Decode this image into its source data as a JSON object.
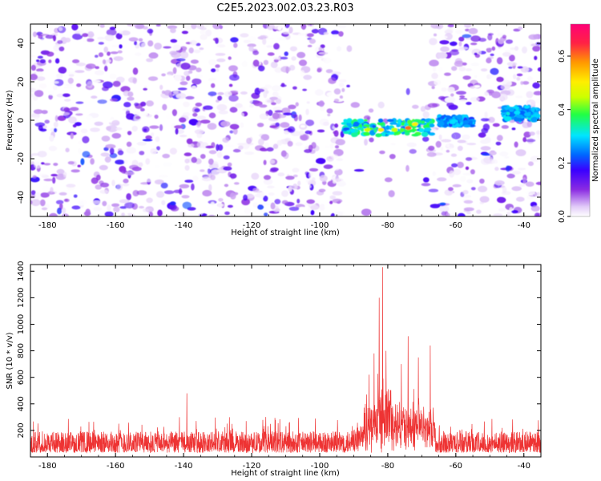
{
  "figure": {
    "title": "C2E5.2023.002.03.23.R03"
  },
  "colors": {
    "snr_line": "#ee3333",
    "axis": "#000000",
    "background": "#ffffff",
    "colormap": [
      "#ffffff",
      "#d7b8f5",
      "#8a2be2",
      "#3a00ff",
      "#0066ff",
      "#00e5ff",
      "#22ff44",
      "#ccff00",
      "#ffee00",
      "#ff9900",
      "#ff2244",
      "#ff0077"
    ]
  },
  "chart_data": [
    {
      "type": "heatmap",
      "title": "",
      "xlabel": "Height of straight line (km)",
      "ylabel": "Frequency (Hz)",
      "xlim": [
        -185,
        -35
      ],
      "ylim": [
        -50,
        50
      ],
      "x_ticks": [
        -180,
        -160,
        -140,
        -120,
        -100,
        -80,
        -60,
        -40
      ],
      "y_ticks": [
        -40,
        -20,
        0,
        20,
        40
      ],
      "grid": false,
      "colorbar": {
        "label": "Normalized spectral amplitude",
        "range": [
          0,
          0.72
        ],
        "ticks": [
          0.0,
          0.2,
          0.4,
          0.6
        ]
      },
      "regions": [
        {
          "x": [
            -185,
            -93
          ],
          "kind": "noise"
        },
        {
          "x": [
            -93,
            -67
          ],
          "kind": "signal-band",
          "band_y": [
            -8,
            0
          ]
        },
        {
          "x": [
            -67,
            -35
          ],
          "kind": "noise",
          "band_y": [
            -3,
            5
          ]
        }
      ],
      "hotspots": [
        {
          "x": -86,
          "y": -5,
          "amp": 0.45
        },
        {
          "x": -82,
          "y": -5,
          "amp": 0.5
        },
        {
          "x": -78,
          "y": -5,
          "amp": 0.45
        },
        {
          "x": -74,
          "y": -4,
          "amp": 0.6
        },
        {
          "x": -72,
          "y": -2,
          "amp": 0.5
        },
        {
          "x": -61,
          "y": -1,
          "amp": 0.3
        },
        {
          "x": -57,
          "y": -1,
          "amp": 0.25
        },
        {
          "x": -42,
          "y": 4,
          "amp": 0.3
        },
        {
          "x": -39,
          "y": 3,
          "amp": 0.28
        }
      ]
    },
    {
      "type": "line",
      "title": "",
      "xlabel": "Height of straight line (km)",
      "ylabel": "SNR (10 * v/v)",
      "xlim": [
        -185,
        -35
      ],
      "ylim": [
        0,
        1450
      ],
      "x_ticks": [
        -180,
        -160,
        -140,
        -120,
        -100,
        -80,
        -60,
        -40
      ],
      "y_ticks": [
        200,
        400,
        600,
        800,
        1000,
        1200,
        1400
      ],
      "grid": false,
      "series": [
        {
          "x_range": [
            -185,
            -35
          ],
          "baseline": 130,
          "noise_amplitude": 160,
          "peaks": [
            {
              "x": -81.5,
              "y": 1430
            },
            {
              "x": -82.5,
              "y": 1200
            },
            {
              "x": -80.5,
              "y": 800
            },
            {
              "x": -84,
              "y": 780
            },
            {
              "x": -85.5,
              "y": 620
            },
            {
              "x": -74,
              "y": 910
            },
            {
              "x": -67.5,
              "y": 840
            },
            {
              "x": -71,
              "y": 750
            },
            {
              "x": -76,
              "y": 700
            },
            {
              "x": -139,
              "y": 480
            }
          ]
        }
      ]
    }
  ]
}
